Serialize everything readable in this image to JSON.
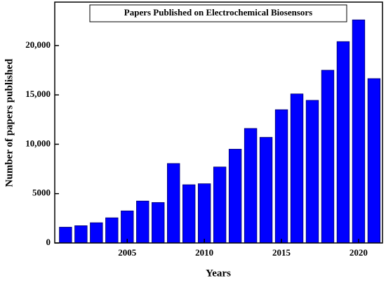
{
  "chart_data": {
    "type": "bar",
    "title": "Papers Published on Electrochemical Biosensors",
    "x_label": "Years",
    "y_label": "Number of papers published",
    "x": [
      2001,
      2002,
      2003,
      2004,
      2005,
      2006,
      2007,
      2008,
      2009,
      2010,
      2011,
      2012,
      2013,
      2014,
      2015,
      2016,
      2017,
      2018,
      2019,
      2020,
      2021
    ],
    "values": [
      1600,
      1750,
      2050,
      2550,
      3250,
      4250,
      4100,
      8050,
      5900,
      6000,
      7700,
      9500,
      11600,
      10700,
      13500,
      15100,
      14450,
      17500,
      20400,
      22600,
      16650
    ],
    "color": "#0000ff",
    "xlim": [
      2000.3,
      2021.55
    ],
    "xticks": [
      2005,
      2010,
      2015,
      2020
    ],
    "ylim": [
      0,
      24400
    ],
    "yticks": [
      0,
      5000,
      {
        "value": 10000,
        "label": "10,000"
      },
      {
        "value": 15000,
        "label": "15,000"
      },
      {
        "value": 20000,
        "label": "20,000"
      }
    ]
  }
}
